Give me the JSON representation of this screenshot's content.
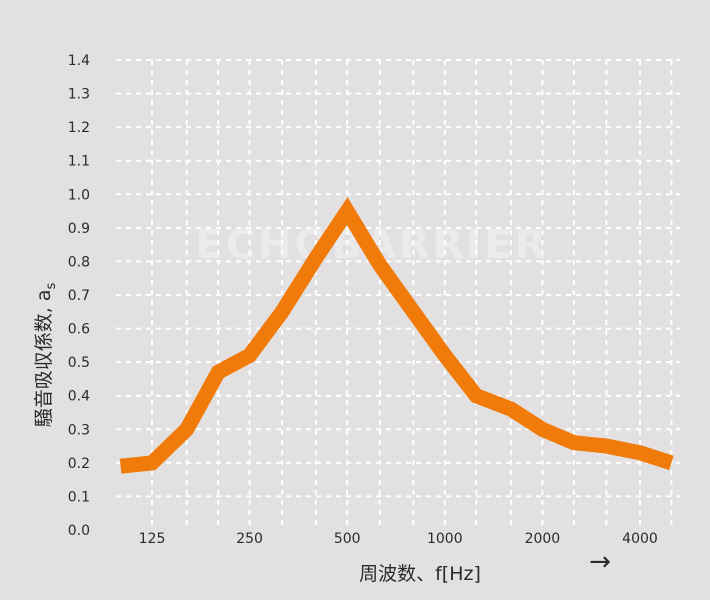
{
  "chart_data": {
    "type": "line",
    "ylabel": "騒音吸収係数, a",
    "ylabel_subscript": "s",
    "xlabel": "周波数、f[Hz]",
    "x_tick_labels": [
      "125",
      "250",
      "500",
      "1000",
      "2000",
      "4000"
    ],
    "x_ticks": [
      125,
      250,
      500,
      1000,
      2000,
      4000
    ],
    "x_scale": "log",
    "ylim": [
      0,
      1.4
    ],
    "y_ticks": [
      "0.0",
      "0.1",
      "0.2",
      "0.3",
      "0.4",
      "0.5",
      "0.6",
      "0.7",
      "0.8",
      "0.9",
      "1.0",
      "1.1",
      "1.2",
      "1.3",
      "1.4"
    ],
    "grid": true,
    "series": [
      {
        "x": [
          100,
          125,
          160,
          200,
          250,
          315,
          400,
          500,
          630,
          800,
          1000,
          1250,
          1600,
          2000,
          2500,
          3150,
          4000,
          5000
        ],
        "values": [
          0.19,
          0.2,
          0.3,
          0.47,
          0.52,
          0.65,
          0.81,
          0.95,
          0.79,
          0.65,
          0.52,
          0.4,
          0.36,
          0.3,
          0.26,
          0.25,
          0.23,
          0.2
        ],
        "color": "#f07b0a"
      }
    ],
    "watermark_text": "ECHOBARRIER",
    "arrow": "→"
  }
}
